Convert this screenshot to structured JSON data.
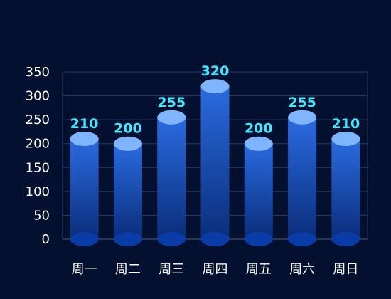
{
  "chart_data": {
    "type": "bar",
    "categories": [
      "周一",
      "周二",
      "周三",
      "周四",
      "周五",
      "周六",
      "周日"
    ],
    "values": [
      210,
      200,
      255,
      320,
      200,
      255,
      210
    ],
    "yticks": [
      0,
      50,
      100,
      150,
      200,
      250,
      300,
      350
    ],
    "ylim": [
      0,
      350
    ],
    "grid": true,
    "colors": {
      "background": "#031030",
      "bar_top": "#2a6be0",
      "bar_bottom": "#0a2d7a",
      "cap_top": "#7fb4ff",
      "cap_bottom": "#0a3ca8",
      "grid": "#2a3a63",
      "label": "#3fe8ff",
      "tick_text": "#ffffff"
    }
  }
}
